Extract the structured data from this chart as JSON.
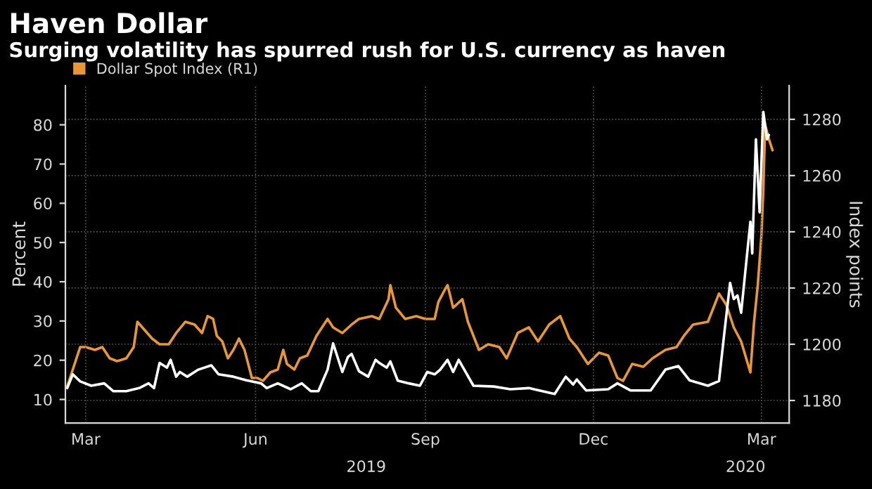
{
  "chart_data": {
    "type": "line",
    "title": "Haven Dollar",
    "subtitle": "Surging volatility has spurred rush for U.S. currency as haven",
    "ylabel": "Percent",
    "y2label": "Index points",
    "xlim": [
      "2019-02-18",
      "2020-03-16"
    ],
    "ylim": [
      4,
      90
    ],
    "y2lim": [
      1172,
      1292
    ],
    "xticks": [
      {
        "value": "2019-03-01",
        "label": "Mar"
      },
      {
        "value": "2019-06-01",
        "label": "Jun"
      },
      {
        "value": "2019-09-01",
        "label": "Sep"
      },
      {
        "value": "2019-12-01",
        "label": "Dec"
      },
      {
        "value": "2020-03-01",
        "label": "Mar"
      }
    ],
    "yticks": [
      10,
      20,
      30,
      40,
      50,
      60,
      70,
      80
    ],
    "y2ticks": [
      1180,
      1200,
      1220,
      1240,
      1260,
      1280
    ],
    "annotations": [
      "2019",
      "2020"
    ],
    "grid": true,
    "legend": "top left",
    "series": [
      {
        "name": "Dollar Spot Index (R1)",
        "color": "#e8963a",
        "axis": "y2",
        "x": [
          "2019-02-19",
          "2019-02-22",
          "2019-02-26",
          "2019-03-01",
          "2019-03-06",
          "2019-03-10",
          "2019-03-14",
          "2019-03-18",
          "2019-03-23",
          "2019-03-27",
          "2019-03-29",
          "2019-04-02",
          "2019-04-06",
          "2019-04-10",
          "2019-04-15",
          "2019-04-19",
          "2019-04-24",
          "2019-04-29",
          "2019-05-03",
          "2019-05-06",
          "2019-05-09",
          "2019-05-11",
          "2019-05-14",
          "2019-05-17",
          "2019-05-20",
          "2019-05-23",
          "2019-05-26",
          "2019-05-30",
          "2019-06-02",
          "2019-06-05",
          "2019-06-09",
          "2019-06-13",
          "2019-06-16",
          "2019-06-18",
          "2019-06-22",
          "2019-06-25",
          "2019-06-29",
          "2019-07-04",
          "2019-07-10",
          "2019-07-13",
          "2019-07-18",
          "2019-07-23",
          "2019-07-27",
          "2019-08-03",
          "2019-08-07",
          "2019-08-12",
          "2019-08-13",
          "2019-08-16",
          "2019-08-21",
          "2019-08-27",
          "2019-09-01",
          "2019-09-06",
          "2019-09-08",
          "2019-09-12",
          "2019-09-13",
          "2019-09-16",
          "2019-09-21",
          "2019-09-24",
          "2019-09-30",
          "2019-10-05",
          "2019-10-11",
          "2019-10-15",
          "2019-10-21",
          "2019-10-27",
          "2019-11-01",
          "2019-11-07",
          "2019-11-13",
          "2019-11-18",
          "2019-11-22",
          "2019-11-28",
          "2019-12-04",
          "2019-12-09",
          "2019-12-14",
          "2019-12-17",
          "2019-12-22",
          "2019-12-28",
          "2020-01-02",
          "2020-01-09",
          "2020-01-15",
          "2020-01-19",
          "2020-01-24",
          "2020-02-01",
          "2020-02-07",
          "2020-02-11",
          "2020-02-15",
          "2020-02-19",
          "2020-02-24",
          "2020-02-26",
          "2020-02-28",
          "2020-03-01",
          "2020-03-02",
          "2020-03-03",
          "2020-03-05",
          "2020-03-07"
        ],
        "values": [
          1185,
          1191,
          1199,
          1199,
          1198,
          1199,
          1195,
          1194,
          1195,
          1199,
          1208,
          1205,
          1202,
          1200,
          1200,
          1204,
          1208,
          1207,
          1204,
          1210,
          1209,
          1203,
          1201,
          1195,
          1198,
          1202,
          1198,
          1188,
          1188,
          1187,
          1190,
          1191,
          1198,
          1193,
          1191,
          1195,
          1196,
          1203,
          1209,
          1206,
          1204,
          1207,
          1209,
          1210,
          1209,
          1216,
          1221,
          1213,
          1209,
          1210,
          1209,
          1209,
          1215,
          1220,
          1221,
          1213,
          1216,
          1208,
          1198,
          1200,
          1199,
          1195,
          1204,
          1206,
          1201,
          1207,
          1210,
          1202,
          1199,
          1193,
          1197,
          1196,
          1188,
          1187,
          1193,
          1192,
          1195,
          1198,
          1199,
          1203,
          1207,
          1208,
          1218,
          1214,
          1206,
          1201,
          1190,
          1208,
          1221,
          1239,
          1255,
          1278,
          1273,
          1269
        ]
      },
      {
        "color": "#ffffff",
        "x": [
          "2019-02-19",
          "2019-02-22",
          "2019-02-26",
          "2019-03-04",
          "2019-03-11",
          "2019-03-16",
          "2019-03-23",
          "2019-03-30",
          "2019-04-04",
          "2019-04-07",
          "2019-04-10",
          "2019-04-14",
          "2019-04-16",
          "2019-04-19",
          "2019-04-21",
          "2019-04-25",
          "2019-05-01",
          "2019-05-08",
          "2019-05-12",
          "2019-05-20",
          "2019-05-27",
          "2019-06-04",
          "2019-06-07",
          "2019-06-13",
          "2019-06-20",
          "2019-06-26",
          "2019-07-01",
          "2019-07-05",
          "2019-07-10",
          "2019-07-13",
          "2019-07-16",
          "2019-07-18",
          "2019-07-21",
          "2019-07-23",
          "2019-07-27",
          "2019-08-01",
          "2019-08-05",
          "2019-08-07",
          "2019-08-11",
          "2019-08-13",
          "2019-08-17",
          "2019-08-23",
          "2019-08-29",
          "2019-09-02",
          "2019-09-06",
          "2019-09-09",
          "2019-09-13",
          "2019-09-16",
          "2019-09-19",
          "2019-09-27",
          "2019-10-08",
          "2019-10-17",
          "2019-10-27",
          "2019-11-10",
          "2019-11-16",
          "2019-11-20",
          "2019-11-22",
          "2019-11-27",
          "2019-12-09",
          "2019-12-14",
          "2019-12-21",
          "2020-01-01",
          "2020-01-09",
          "2020-01-16",
          "2020-01-22",
          "2020-02-01",
          "2020-02-07",
          "2020-02-10",
          "2020-02-13",
          "2020-02-15",
          "2020-02-17",
          "2020-02-19",
          "2020-02-21",
          "2020-02-24",
          "2020-02-25",
          "2020-02-27",
          "2020-02-29",
          "2020-03-02",
          "2020-03-04",
          "2020-03-05"
        ],
        "values": [
          12.9,
          16.4,
          14.6,
          13.5,
          14.1,
          12.1,
          12.1,
          12.9,
          14.1,
          12.9,
          19.3,
          18.1,
          20.1,
          15.8,
          17.0,
          15.8,
          17.6,
          18.7,
          16.4,
          15.8,
          14.9,
          14.1,
          12.9,
          14.1,
          12.6,
          14.1,
          12.1,
          12.1,
          17.6,
          24.3,
          19.9,
          17.0,
          20.8,
          21.6,
          17.2,
          15.8,
          20.1,
          19.3,
          18.1,
          19.7,
          14.8,
          14.1,
          13.5,
          17.0,
          16.4,
          17.6,
          20.1,
          17.0,
          20.1,
          13.5,
          13.3,
          12.6,
          12.9,
          11.4,
          15.8,
          13.8,
          15.1,
          12.3,
          12.6,
          14.1,
          12.3,
          12.3,
          17.6,
          18.5,
          14.9,
          13.5,
          14.7,
          27.4,
          39.7,
          35.6,
          36.5,
          32.1,
          41.4,
          55.3,
          47.2,
          76.3,
          57.7,
          83.3,
          76.3,
          77.4
        ]
      }
    ]
  }
}
